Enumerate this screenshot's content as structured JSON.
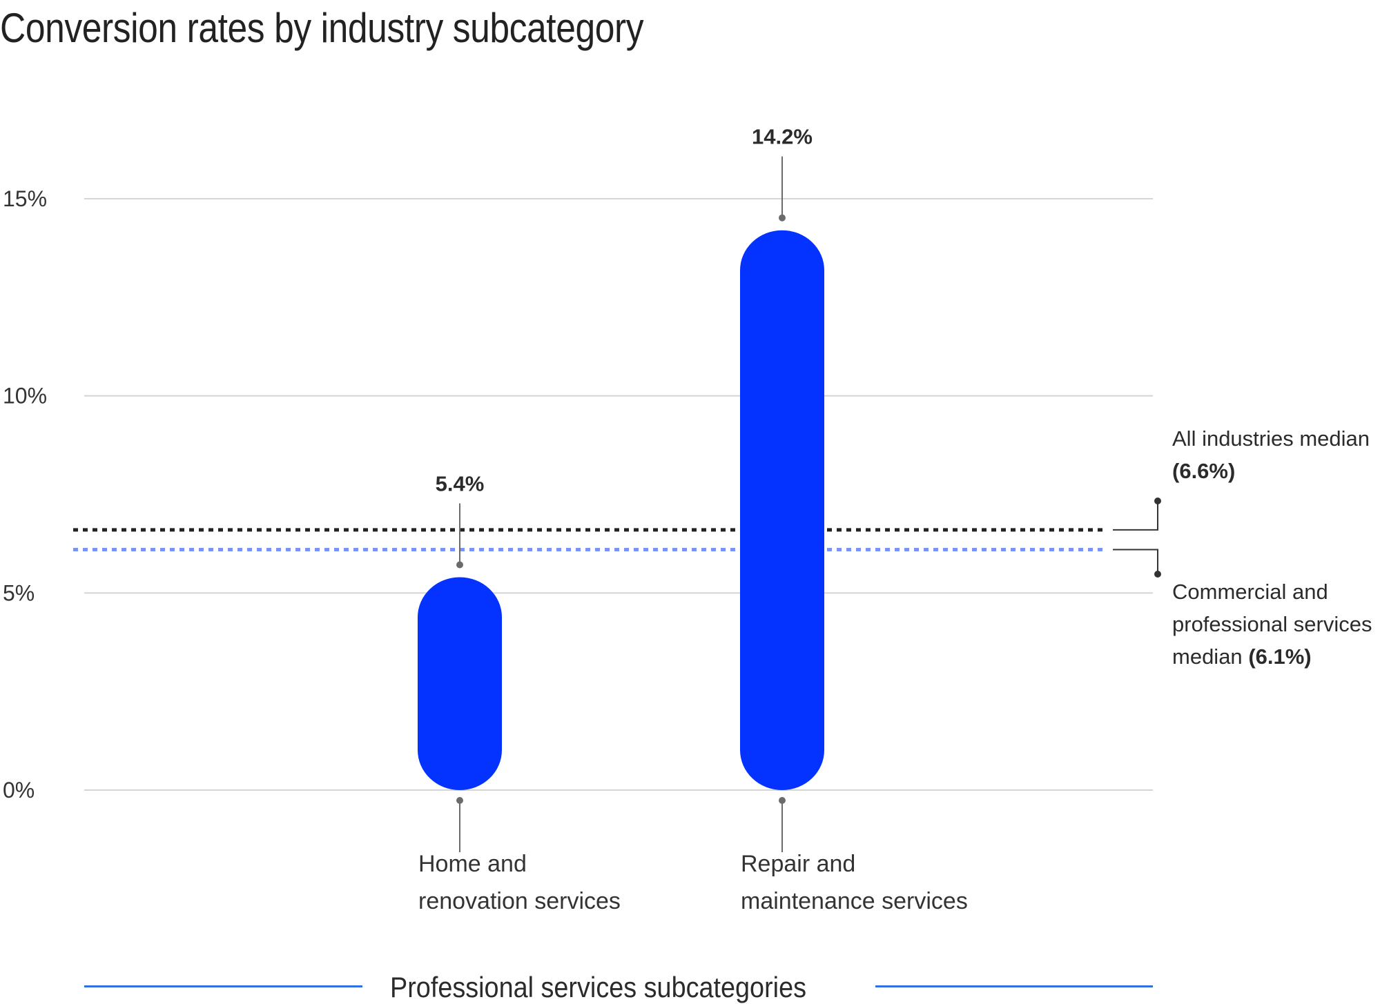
{
  "chart_data": {
    "type": "bar",
    "title": "Conversion rates by industry subcategory",
    "xlabel": "Professional services subcategories",
    "ylabel": "",
    "ylim": [
      0,
      15
    ],
    "yticks": [
      "0%",
      "5%",
      "10%",
      "15%"
    ],
    "grid": true,
    "categories": [
      "Home and renovation services",
      "Repair and maintenance services"
    ],
    "category_lines": [
      [
        "Home and",
        "renovation services"
      ],
      [
        "Repair and",
        "maintenance services"
      ]
    ],
    "values": [
      5.4,
      14.2
    ],
    "value_labels": [
      "5.4%",
      "14.2%"
    ],
    "reference_lines": [
      {
        "label": "All industries median",
        "value_text": "(6.6%)",
        "value": 6.6,
        "color": "#222222",
        "style": "dotted"
      },
      {
        "label": "Commercial and professional services median",
        "value_text": "(6.1%)",
        "value": 6.1,
        "color": "#7b93f5",
        "style": "dotted"
      }
    ],
    "bar_color": "#0433ff"
  },
  "annotations": {
    "all_industries": {
      "line1": "All industries median",
      "value": "(6.6%)"
    },
    "commercial": {
      "line1": "Commercial and",
      "line2": "professional services",
      "line3": "median",
      "value": "(6.1%)"
    }
  }
}
